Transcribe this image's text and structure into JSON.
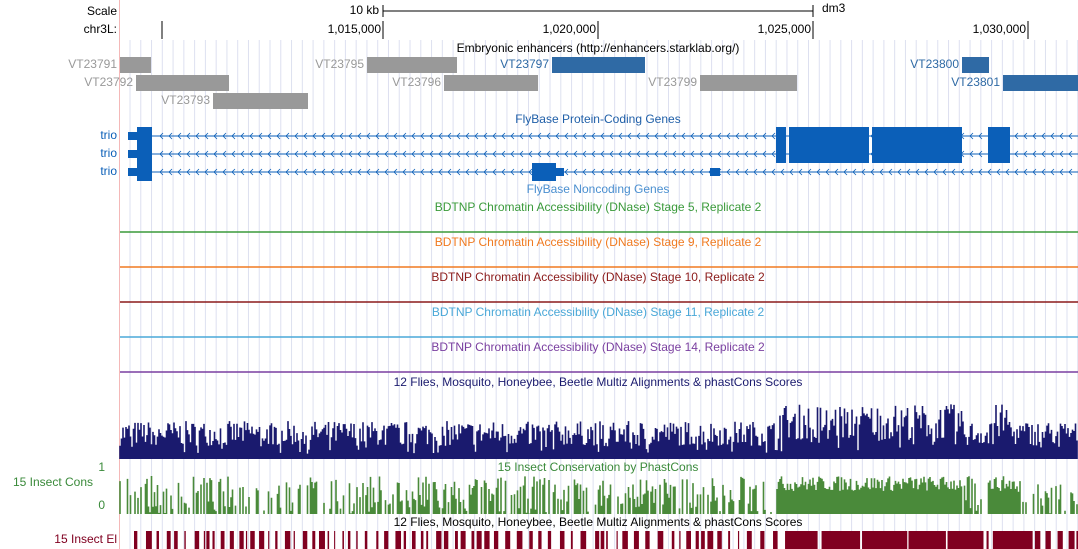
{
  "ruler": {
    "scale_label": "Scale",
    "scale_bar": "10 kb",
    "assembly": "dm3",
    "chrom": "chr3L:",
    "positions": [
      "1,015,000",
      "1,020,000",
      "1,025,000",
      "1,030,000"
    ]
  },
  "enhancers": {
    "title": "Embryonic enhancers (http://enhancers.starklab.org/)",
    "features": [
      "VT23791",
      "VT23792",
      "VT23793",
      "VT23795",
      "VT23796",
      "VT23797",
      "VT23799",
      "VT23800",
      "VT23801"
    ]
  },
  "genes": {
    "title": "FlyBase Protein-Coding Genes",
    "rows": [
      "trio",
      "trio",
      "trio"
    ]
  },
  "noncoding": {
    "title": "FlyBase Noncoding Genes"
  },
  "dnase": [
    "BDTNP Chromatin Accessibility (DNase) Stage 5, Replicate 2",
    "BDTNP Chromatin Accessibility (DNase) Stage 9, Replicate 2",
    "BDTNP Chromatin Accessibility (DNase) Stage 10, Replicate 2",
    "BDTNP Chromatin Accessibility (DNase) Stage 11, Replicate 2",
    "BDTNP Chromatin Accessibility (DNase) Stage 14, Replicate 2"
  ],
  "multiz": {
    "title": "12 Flies, Mosquito, Honeybee, Beetle Multiz Alignments & phastCons Scores"
  },
  "phastcons": {
    "title": "15 Insect Conservation by PhastCons",
    "label": "15 Insect Cons",
    "max": "1",
    "min": "0"
  },
  "elements": {
    "title": "12 Flies, Mosquito, Honeybee, Beetle Multiz Alignments & phastCons Scores",
    "label": "15 Insect El"
  }
}
